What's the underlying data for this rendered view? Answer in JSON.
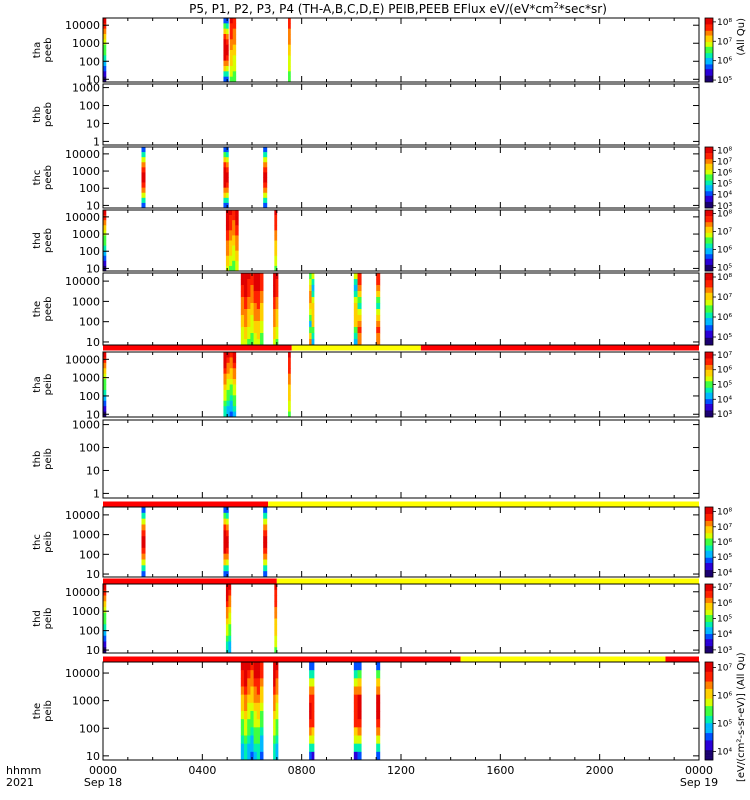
{
  "chart_data": {
    "type": "heatmap",
    "title": "P5, P1, P2, P3, P4 (TH-A,B,C,D,E) PEIB,PEEB EFlux eV/(eV*cm²*sec*sr)",
    "title_parts": [
      "P5, P1, P2, P3, P4 (TH-A,B,C,D,E) PEIB,PEEB EFlux eV/(eV*cm",
      "2",
      "*sec*sr)"
    ],
    "right_label_top": "(All Qu)",
    "right_label_bottom": "[eV/(cm²-s-sr-eV)] (All Qu)",
    "x_axis": {
      "tick_labels": [
        "0000",
        "0400",
        "0800",
        "1200",
        "1600",
        "2000",
        "0000"
      ],
      "tick_hours": [
        0,
        4,
        8,
        12,
        16,
        20,
        24
      ],
      "date_labels": [
        "Sep 18",
        "Sep 19"
      ],
      "row_label_time": "hhmm",
      "row_label_year": "2021",
      "range_hours": [
        0,
        24
      ]
    },
    "colormap": [
      "#1a0070",
      "#2a00d8",
      "#0050ff",
      "#00b8ff",
      "#00f0b0",
      "#40ff40",
      "#d8ff00",
      "#ffd000",
      "#ff8000",
      "#ff2000",
      "#e00000"
    ],
    "panels": [
      {
        "id": "tha-peeb",
        "ylabel": [
          "tha",
          "peeb"
        ],
        "yticks": [
          "10000",
          "1000",
          "100",
          "10"
        ],
        "yticks_log": [
          4,
          3,
          2,
          1
        ],
        "ylim_log": [
          0.85,
          4.4
        ],
        "colorbar": {
          "ticks": [
            "10⁸",
            "10⁷",
            "10⁶",
            "10⁵"
          ],
          "log": [
            8,
            7,
            6,
            5
          ],
          "range": [
            4.9,
            8.2
          ]
        },
        "blocks": [
          {
            "start_h": 0.0,
            "end_h": 0.12,
            "mode": "edge"
          },
          {
            "start_h": 4.85,
            "end_h": 5.05,
            "mode": "ion"
          },
          {
            "start_h": 5.1,
            "end_h": 5.35,
            "mode": "hot"
          },
          {
            "start_h": 7.45,
            "end_h": 7.55,
            "mode": "hot"
          }
        ]
      },
      {
        "id": "thb-peeb",
        "ylabel": [
          "thb",
          "peeb"
        ],
        "yticks": [
          "1000",
          "100",
          "10",
          "1"
        ],
        "yticks_log": [
          3,
          2,
          1,
          0
        ],
        "ylim_log": [
          -0.2,
          3.2
        ],
        "colorbar": null,
        "blocks": []
      },
      {
        "id": "thc-peeb",
        "ylabel": [
          "thc",
          "peeb"
        ],
        "yticks": [
          "10000",
          "1000",
          "100",
          "10"
        ],
        "yticks_log": [
          4,
          3,
          2,
          1
        ],
        "ylim_log": [
          0.85,
          4.4
        ],
        "colorbar": {
          "ticks": [
            "10⁸",
            "10⁷",
            "10⁶",
            "10⁵",
            "10⁴",
            "10³"
          ],
          "log": [
            8,
            7,
            6,
            5,
            4,
            3
          ],
          "range": [
            2.8,
            8.3
          ]
        },
        "blocks": [
          {
            "start_h": 1.55,
            "end_h": 1.7,
            "mode": "ion"
          },
          {
            "start_h": 4.85,
            "end_h": 5.05,
            "mode": "ion"
          },
          {
            "start_h": 6.45,
            "end_h": 6.6,
            "mode": "ion"
          }
        ]
      },
      {
        "id": "thd-peeb",
        "ylabel": [
          "thd",
          "peeb"
        ],
        "yticks": [
          "10000",
          "1000",
          "100",
          "10"
        ],
        "yticks_log": [
          4,
          3,
          2,
          1
        ],
        "ylim_log": [
          0.85,
          4.4
        ],
        "colorbar": {
          "ticks": [
            "10⁸",
            "10⁷",
            "10⁶",
            "10⁵"
          ],
          "log": [
            8,
            7,
            6,
            5
          ],
          "range": [
            4.8,
            8.2
          ]
        },
        "blocks": [
          {
            "start_h": 0.0,
            "end_h": 0.12,
            "mode": "edge"
          },
          {
            "start_h": 4.95,
            "end_h": 5.45,
            "mode": "hot"
          },
          {
            "start_h": 6.9,
            "end_h": 7.0,
            "mode": "hot"
          }
        ]
      },
      {
        "id": "the-peeb",
        "ylabel": [
          "the",
          "peeb"
        ],
        "yticks": [
          "10000",
          "1000",
          "100",
          "10"
        ],
        "yticks_log": [
          4,
          3,
          2,
          1
        ],
        "ylim_log": [
          0.85,
          4.4
        ],
        "colorbar": {
          "ticks": [
            "10⁸",
            "10⁷",
            "10⁶",
            "10⁵"
          ],
          "log": [
            8,
            7,
            6,
            5
          ],
          "range": [
            4.6,
            8.2
          ]
        },
        "blocks": [
          {
            "start_h": 5.55,
            "end_h": 6.45,
            "mode": "hot"
          },
          {
            "start_h": 6.85,
            "end_h": 7.05,
            "mode": "hot"
          },
          {
            "start_h": 8.3,
            "end_h": 8.5,
            "mode": "mid"
          },
          {
            "start_h": 10.1,
            "end_h": 10.4,
            "mode": "mid"
          },
          {
            "start_h": 11.0,
            "end_h": 11.15,
            "mode": "mid"
          }
        ]
      },
      {
        "id": "tha-peib",
        "ylabel": [
          "tha",
          "peib"
        ],
        "yticks": [
          "10000",
          "1000",
          "100",
          "10"
        ],
        "yticks_log": [
          4,
          3,
          2,
          1
        ],
        "ylim_log": [
          0.85,
          4.4
        ],
        "colorbar": {
          "ticks": [
            "10⁷",
            "10⁶",
            "10⁵",
            "10⁴",
            "10³"
          ],
          "log": [
            7,
            6,
            5,
            4,
            3
          ],
          "range": [
            2.8,
            7.2
          ]
        },
        "blocks": [
          {
            "start_h": 0.0,
            "end_h": 0.12,
            "mode": "edge"
          },
          {
            "start_h": 4.85,
            "end_h": 5.35,
            "mode": "ionbright"
          },
          {
            "start_h": 7.45,
            "end_h": 7.55,
            "mode": "hot"
          }
        ]
      },
      {
        "id": "thb-peib",
        "ylabel": [
          "thb",
          "peib"
        ],
        "yticks": [
          "1000",
          "100",
          "10",
          "1"
        ],
        "yticks_log": [
          3,
          2,
          1,
          0
        ],
        "ylim_log": [
          -0.2,
          3.2
        ],
        "colorbar": null,
        "blocks": []
      },
      {
        "id": "thc-peib",
        "ylabel": [
          "thc",
          "peib"
        ],
        "yticks": [
          "10000",
          "1000",
          "100",
          "10"
        ],
        "yticks_log": [
          4,
          3,
          2,
          1
        ],
        "ylim_log": [
          0.85,
          4.4
        ],
        "colorbar": {
          "ticks": [
            "10⁸",
            "10⁷",
            "10⁶",
            "10⁵",
            "10⁴"
          ],
          "log": [
            8,
            7,
            6,
            5,
            4
          ],
          "range": [
            3.7,
            8.3
          ]
        },
        "blocks": [
          {
            "start_h": 1.55,
            "end_h": 1.7,
            "mode": "ion"
          },
          {
            "start_h": 4.85,
            "end_h": 5.05,
            "mode": "ion"
          },
          {
            "start_h": 6.45,
            "end_h": 6.6,
            "mode": "ion"
          }
        ]
      },
      {
        "id": "thd-peib",
        "ylabel": [
          "thd",
          "peib"
        ],
        "yticks": [
          "10000",
          "1000",
          "100",
          "10"
        ],
        "yticks_log": [
          4,
          3,
          2,
          1
        ],
        "ylim_log": [
          0.85,
          4.4
        ],
        "colorbar": {
          "ticks": [
            "10⁷",
            "10⁶",
            "10⁵",
            "10⁴",
            "10³"
          ],
          "log": [
            7,
            6,
            5,
            4,
            3
          ],
          "range": [
            2.8,
            7.2
          ]
        },
        "blocks": [
          {
            "start_h": 0.0,
            "end_h": 0.12,
            "mode": "edge"
          },
          {
            "start_h": 4.95,
            "end_h": 5.15,
            "mode": "ionbright"
          },
          {
            "start_h": 6.9,
            "end_h": 7.0,
            "mode": "hot"
          }
        ]
      },
      {
        "id": "the-peib",
        "ylabel": [
          "the",
          "peib"
        ],
        "yticks": [
          "10000",
          "1000",
          "100",
          "10"
        ],
        "yticks_log": [
          4,
          3,
          2,
          1
        ],
        "ylim_log": [
          0.85,
          4.4
        ],
        "colorbar": {
          "ticks": [
            "10⁷",
            "10⁶",
            "10⁵",
            "10⁴"
          ],
          "log": [
            7,
            6,
            5,
            4
          ],
          "range": [
            3.7,
            7.2
          ]
        },
        "blocks": [
          {
            "start_h": 5.55,
            "end_h": 6.45,
            "mode": "ionbright"
          },
          {
            "start_h": 6.85,
            "end_h": 7.05,
            "mode": "ionbright"
          },
          {
            "start_h": 8.3,
            "end_h": 8.5,
            "mode": "ion"
          },
          {
            "start_h": 10.1,
            "end_h": 10.4,
            "mode": "ion"
          },
          {
            "start_h": 11.0,
            "end_h": 11.15,
            "mode": "ion"
          }
        ]
      }
    ],
    "mode_bars": [
      {
        "after_panel": 4,
        "segments": [
          {
            "start_h": 0,
            "end_h": 7.6,
            "color": "#ff0000"
          },
          {
            "start_h": 7.6,
            "end_h": 12.8,
            "color": "#ffff00"
          },
          {
            "start_h": 12.8,
            "end_h": 24,
            "color": "#ff0000"
          }
        ]
      },
      {
        "after_panel": 6,
        "segments": [
          {
            "start_h": 0,
            "end_h": 6.65,
            "color": "#ff0000"
          },
          {
            "start_h": 6.65,
            "end_h": 24,
            "color": "#ffff00"
          }
        ]
      },
      {
        "after_panel": 7,
        "segments": [
          {
            "start_h": 0,
            "end_h": 7.0,
            "color": "#ff0000"
          },
          {
            "start_h": 7.0,
            "end_h": 24,
            "color": "#ffff00"
          }
        ]
      },
      {
        "after_panel": 8,
        "segments": [
          {
            "start_h": 0,
            "end_h": 14.4,
            "color": "#ff0000"
          },
          {
            "start_h": 14.4,
            "end_h": 22.65,
            "color": "#ffff00"
          },
          {
            "start_h": 22.65,
            "end_h": 24,
            "color": "#ff0000"
          }
        ]
      }
    ]
  }
}
